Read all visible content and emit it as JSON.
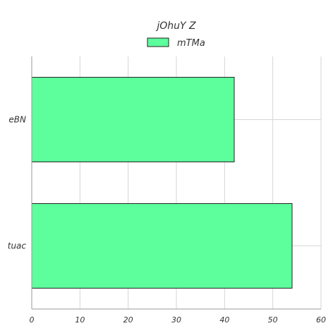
{
  "chart_data": {
    "type": "bar",
    "orientation": "horizontal",
    "title": "jOhuY Z",
    "categories": [
      "eBN",
      "tuac"
    ],
    "series": [
      {
        "name": "mTMa",
        "values": [
          42,
          54
        ]
      }
    ],
    "xlabel": "",
    "ylabel": "",
    "xlim": [
      0,
      60
    ],
    "xticks": [
      0,
      10,
      20,
      30,
      40,
      50,
      60
    ],
    "grid": true,
    "legend_position": "top-center",
    "colors": {
      "bar_fill": "#5cff9c",
      "bar_edge": "#222222",
      "grid": "#d6d6d6",
      "axis": "#999999",
      "text": "#333333"
    }
  }
}
